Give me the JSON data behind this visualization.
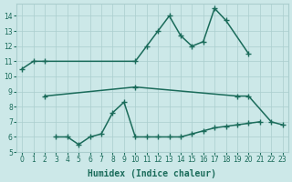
{
  "xlabel": "Humidex (Indice chaleur)",
  "bg_color": "#cce8e8",
  "grid_color": "#aacece",
  "line_color": "#1a6b5a",
  "xlim": [
    -0.5,
    23.5
  ],
  "ylim": [
    5,
    14.8
  ],
  "yticks": [
    5,
    6,
    7,
    8,
    9,
    10,
    11,
    12,
    13,
    14
  ],
  "xticks": [
    0,
    1,
    2,
    3,
    4,
    5,
    6,
    7,
    8,
    9,
    10,
    11,
    12,
    13,
    14,
    15,
    16,
    17,
    18,
    19,
    20,
    21,
    22,
    23
  ],
  "line_top_x": [
    0,
    1,
    2,
    10,
    11,
    12,
    13,
    14,
    15,
    16,
    17,
    18,
    20
  ],
  "line_top_y": [
    10.5,
    11.0,
    11.0,
    11.0,
    12.0,
    13.0,
    14.0,
    12.7,
    12.0,
    12.3,
    14.5,
    13.7,
    11.5
  ],
  "line_mid_x": [
    2,
    10,
    19,
    20,
    22,
    23
  ],
  "line_mid_y": [
    8.7,
    9.3,
    8.7,
    8.7,
    7.0,
    6.8
  ],
  "line_bot_x": [
    3,
    4,
    5,
    6,
    7,
    8,
    9,
    10,
    11,
    12,
    13,
    14,
    15,
    16,
    17,
    18,
    19,
    20,
    21
  ],
  "line_bot_y": [
    6.0,
    6.0,
    5.5,
    6.0,
    6.2,
    7.6,
    8.3,
    6.0,
    6.0,
    6.0,
    6.0,
    6.0,
    6.2,
    6.4,
    6.6,
    6.7,
    6.8,
    6.9,
    7.0
  ]
}
